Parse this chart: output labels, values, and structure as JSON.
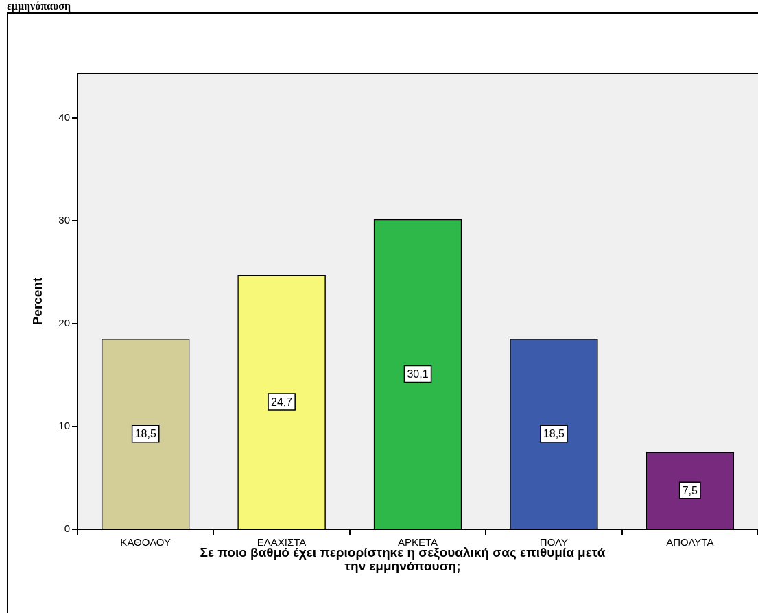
{
  "chart_data": {
    "type": "bar",
    "title": "εμμηνόπαυση",
    "xlabel": "Σε ποιο βαθμό έχει περιορίστηκε η σεξουαλική σας επιθυμία μετά την εμμηνόπαυση;",
    "ylabel": "Percent",
    "categories": [
      "ΚΑΘΟΛΟΥ",
      "ΕΛΑΧΙΣΤΑ",
      "ΑΡΚΕΤΑ",
      "ΠΟΛΥ",
      "ΑΠΟΛΥΤΑ"
    ],
    "values": [
      18.5,
      24.7,
      30.1,
      18.5,
      7.5
    ],
    "colors": [
      "#d3ce97",
      "#f8f878",
      "#2eb84a",
      "#3d5bab",
      "#782a7e"
    ],
    "ylim": [
      0,
      44.3
    ],
    "yticks": [
      0,
      10,
      20,
      30,
      40
    ],
    "value_labels": [
      "18,5",
      "24,7",
      "30,1",
      "18,5",
      "7,5"
    ],
    "data_labels": true,
    "grid": false,
    "legend": false
  }
}
